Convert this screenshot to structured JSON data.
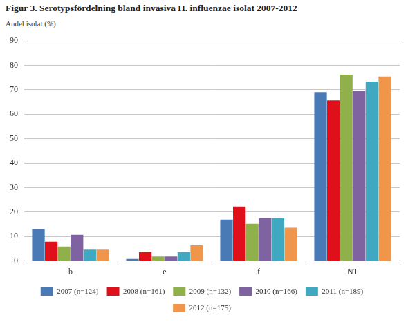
{
  "chart_data": {
    "type": "bar",
    "title": "Figur 3. Serotypsfördelning bland invasiva H. influenzae isolat 2007-2012",
    "ylabel": "Andel isolat (%)",
    "categories": [
      "b",
      "e",
      "f",
      "NT"
    ],
    "series": [
      {
        "name": "2007 (n=124)",
        "color": "#4a7ab5",
        "values": [
          13.0,
          0.8,
          16.9,
          69.1
        ]
      },
      {
        "name": "2008 (n=161)",
        "color": "#e0101a",
        "values": [
          7.9,
          3.6,
          22.3,
          65.7
        ]
      },
      {
        "name": "2009 (n=132)",
        "color": "#8fb04a",
        "values": [
          5.9,
          1.8,
          15.2,
          76.2
        ]
      },
      {
        "name": "2010 (n=166)",
        "color": "#7f63a1",
        "values": [
          10.7,
          1.8,
          17.5,
          69.6
        ]
      },
      {
        "name": "2011 (n=189)",
        "color": "#41a8c2",
        "values": [
          4.6,
          3.6,
          17.5,
          73.4
        ]
      },
      {
        "name": "2012 (n=175)",
        "color": "#f0964a",
        "values": [
          4.6,
          6.4,
          13.6,
          75.4
        ]
      }
    ],
    "ylim": [
      0,
      90
    ],
    "yticks": [
      0,
      10,
      20,
      30,
      40,
      50,
      60,
      70,
      80,
      90
    ],
    "grid": true,
    "legend": "bottom"
  }
}
